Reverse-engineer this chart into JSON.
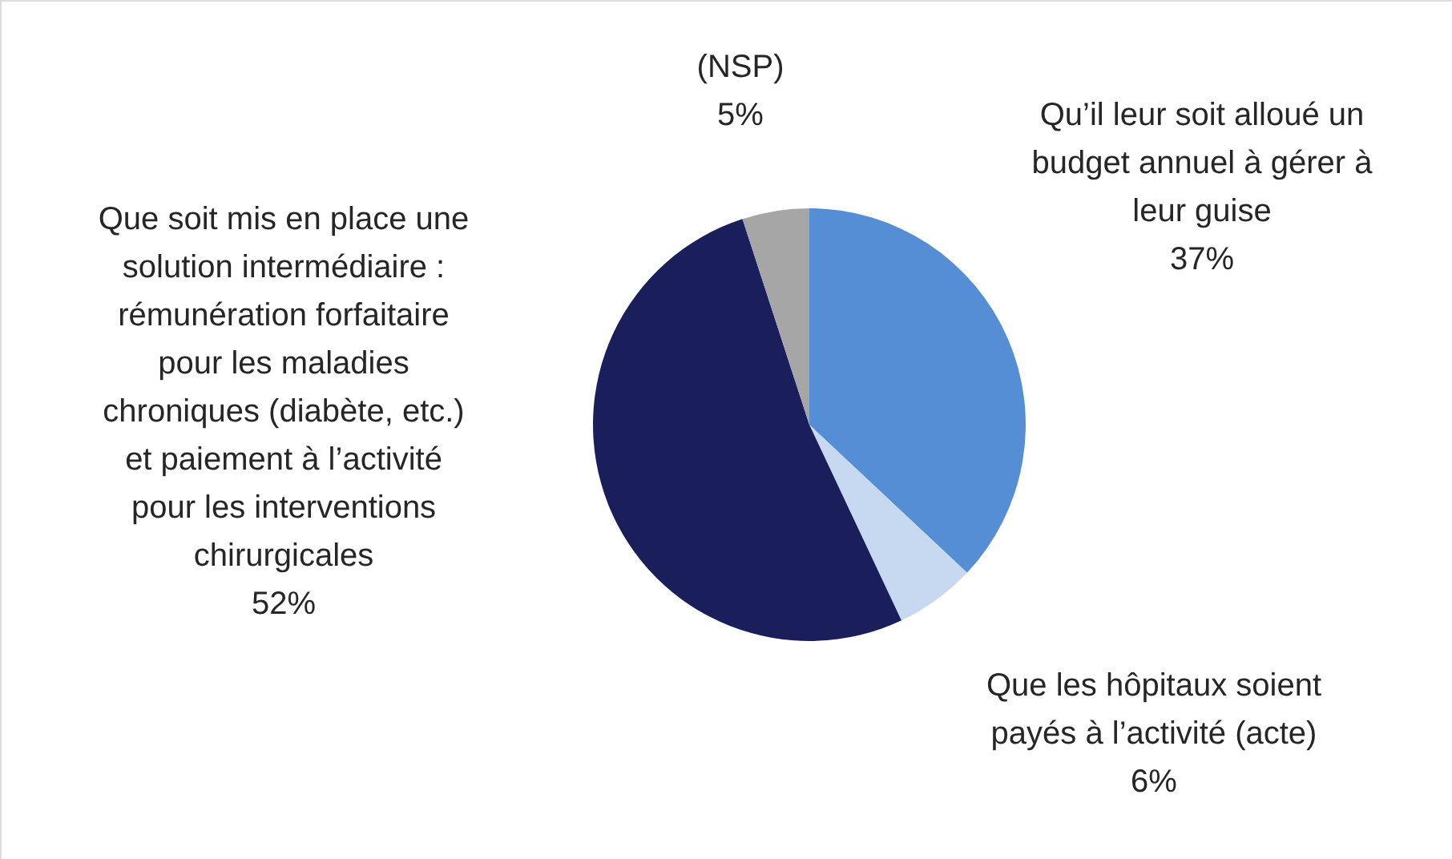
{
  "chart_data": {
    "type": "pie",
    "categories": [
      "Qu’il leur soit alloué un budget annuel à gérer à leur guise",
      "Que les hôpitaux soient payés à l’activité (acte)",
      "Que soit mis en place une solution intermédiaire : rémunération forfaitaire pour les maladies chroniques (diabète, etc.) et paiement à l’activité pour les interventions chirurgicales",
      "(NSP)"
    ],
    "values": [
      37,
      6,
      52,
      5
    ],
    "colors": [
      "#558ed5",
      "#c6d9f1",
      "#1a1f5c",
      "#a6a6a6"
    ],
    "value_labels": [
      "37%",
      "6%",
      "52%",
      "5%"
    ]
  }
}
